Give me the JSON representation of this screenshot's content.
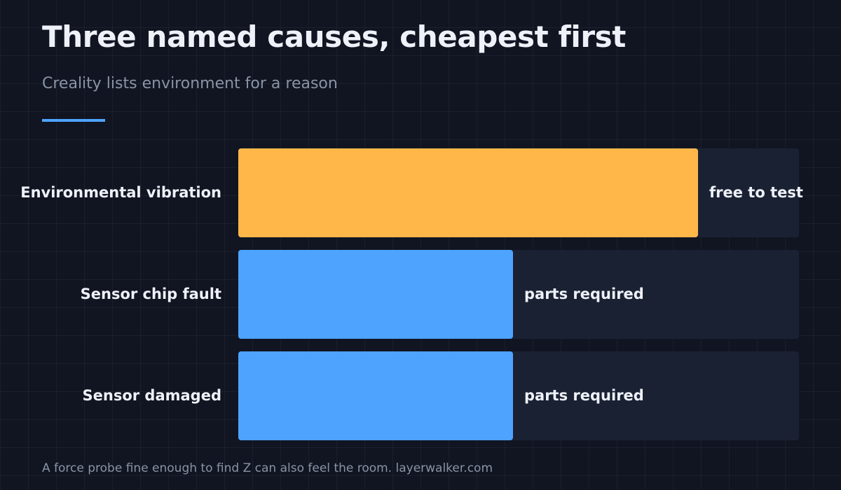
{
  "header": {
    "title": "Three named causes, cheapest first",
    "subtitle": "Creality lists environment for a reason"
  },
  "footer": {
    "text": "A force probe fine enough to find Z can also feel the room. layerwalker.com"
  },
  "colors": {
    "background": "#111522",
    "accent": "#4ea3ff",
    "highlight_bar": "#ffb74a",
    "standard_bar": "#4ea3ff",
    "track": "#1a2133"
  },
  "chart_data": {
    "type": "bar",
    "orientation": "horizontal",
    "title": "Three named causes, cheapest first",
    "subtitle": "Creality lists environment for a reason",
    "categories": [
      "Environmental vibration",
      "Sensor chip fault",
      "Sensor damaged"
    ],
    "values": [
      82,
      49,
      49
    ],
    "annotations": [
      "free to test",
      "parts required",
      "parts required"
    ],
    "bar_colors": [
      "#ffb74a",
      "#4ea3ff",
      "#4ea3ff"
    ],
    "xlim": [
      0,
      100
    ],
    "xlabel": "",
    "ylabel": "",
    "grid": false,
    "legend": "none"
  }
}
